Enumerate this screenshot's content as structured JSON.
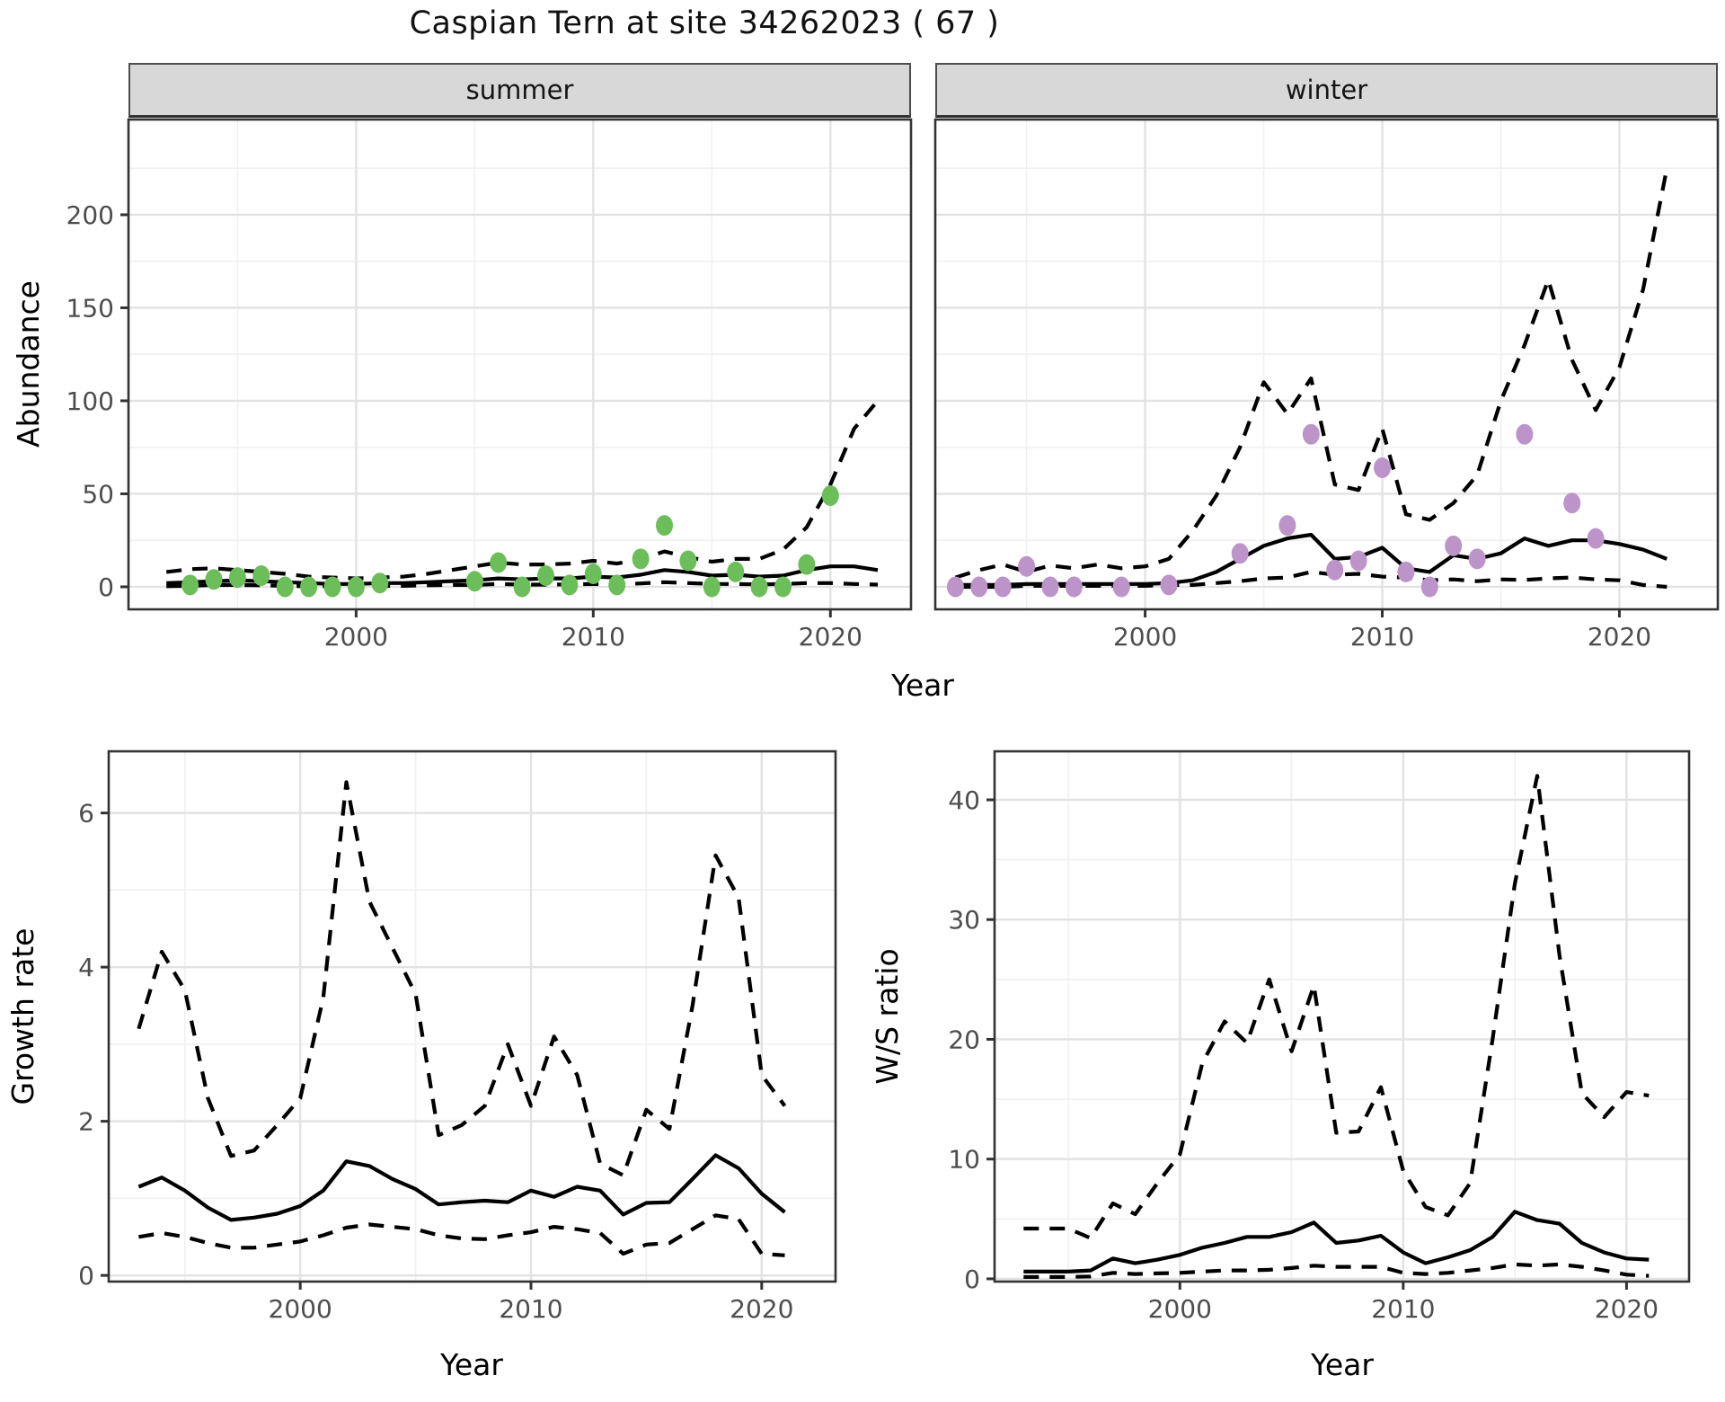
{
  "page": {
    "title": "Caspian Tern at site 34262023 ( 67 )"
  },
  "facets": {
    "summer": "summer",
    "winter": "winter"
  },
  "axis_titles": {
    "abundance": "Abundance",
    "year_top": "Year",
    "growth": "Growth rate",
    "year_growth": "Year",
    "ws": "W/S ratio",
    "year_ws": "Year"
  },
  "colors": {
    "summer_point": "#6cbe5a",
    "winter_point": "#bd94ca",
    "line": "#000000",
    "grid_major": "#e2e2e2",
    "grid_minor": "#f0f0f0",
    "panel_border": "#333333",
    "tick_label": "#4d4d4d",
    "strip_bg": "#d8d8d8"
  },
  "chart_data": [
    {
      "id": "summer",
      "type": "line",
      "facet": "summer",
      "ylabel": "Abundance",
      "xlabel": "Year",
      "xlim": [
        1990.4,
        2023.4
      ],
      "ylim": [
        -12.1,
        251.2
      ],
      "xticks": [
        2000,
        2010,
        2020
      ],
      "xminor": [
        1995,
        2005,
        2015
      ],
      "yticks": [
        0,
        50,
        100,
        150,
        200
      ],
      "yminor": [
        25,
        75,
        125,
        175,
        225
      ],
      "show_y_ticks": true,
      "grid": true,
      "legend": "none",
      "series": [
        {
          "name": "upper CI",
          "style": "dashed",
          "years": [
            1992,
            1993,
            1994,
            1995,
            1996,
            1997,
            1998,
            1999,
            2000,
            2001,
            2002,
            2003,
            2004,
            2005,
            2006,
            2007,
            2008,
            2009,
            2010,
            2011,
            2012,
            2013,
            2014,
            2015,
            2016,
            2017,
            2018,
            2019,
            2020,
            2021,
            2022
          ],
          "values": [
            8,
            9.5,
            10,
            9,
            8,
            7,
            5.5,
            5,
            4.5,
            5,
            5.5,
            7,
            9,
            11,
            13,
            12,
            12,
            12.5,
            14,
            12.5,
            15,
            19,
            16,
            13.5,
            15,
            15,
            20,
            32,
            55,
            85,
            100
          ]
        },
        {
          "name": "lower CI",
          "style": "dashed",
          "years": [
            1992,
            1993,
            1994,
            1995,
            1996,
            1997,
            1998,
            1999,
            2000,
            2001,
            2002,
            2003,
            2004,
            2005,
            2006,
            2007,
            2008,
            2009,
            2010,
            2011,
            2012,
            2013,
            2014,
            2015,
            2016,
            2017,
            2018,
            2019,
            2020,
            2021,
            2022
          ],
          "values": [
            0.3,
            0.5,
            1,
            1,
            0.8,
            0.5,
            0.3,
            0.3,
            0.3,
            0.5,
            0.5,
            0.8,
            1,
            1,
            1.5,
            1.2,
            1.2,
            1.3,
            1.5,
            1.3,
            1.8,
            2.5,
            2,
            1.5,
            1.5,
            1.3,
            1.5,
            2,
            2,
            1.5,
            1.2
          ]
        },
        {
          "name": "model fit",
          "style": "solid",
          "years": [
            1992,
            1993,
            1994,
            1995,
            1996,
            1997,
            1998,
            1999,
            2000,
            2001,
            2002,
            2003,
            2004,
            2005,
            2006,
            2007,
            2008,
            2009,
            2010,
            2011,
            2012,
            2013,
            2014,
            2015,
            2016,
            2017,
            2018,
            2019,
            2020,
            2021,
            2022
          ],
          "values": [
            2,
            2.5,
            3,
            3.5,
            3,
            2.5,
            2,
            1.5,
            1.5,
            2,
            2,
            2.5,
            3,
            3.5,
            4.5,
            4,
            4.5,
            4.5,
            5.5,
            5,
            6.5,
            9,
            8,
            6,
            6.5,
            5.5,
            6,
            9,
            11,
            11,
            9
          ]
        }
      ],
      "points": {
        "name": "observed abundance (summer)",
        "color_key": "summer_point",
        "years": [
          1993,
          1994,
          1995,
          1996,
          1997,
          1998,
          1999,
          2000,
          2001,
          2005,
          2006,
          2007,
          2008,
          2009,
          2010,
          2011,
          2012,
          2013,
          2014,
          2015,
          2016,
          2017,
          2018,
          2019,
          2020
        ],
        "values": [
          1,
          4,
          5,
          6,
          0,
          0,
          0,
          0,
          2,
          3,
          13,
          0,
          6,
          1,
          7,
          1,
          15,
          33,
          14,
          0,
          8,
          0,
          0,
          12,
          49
        ]
      }
    },
    {
      "id": "winter",
      "type": "line",
      "facet": "winter",
      "ylabel": "Abundance",
      "xlabel": "Year",
      "xlim": [
        1991.15,
        2024.15
      ],
      "ylim": [
        -12.1,
        251.2
      ],
      "xticks": [
        2000,
        2010,
        2020
      ],
      "xminor": [
        1995,
        2005,
        2015
      ],
      "yticks": [
        0,
        50,
        100,
        150,
        200
      ],
      "yminor": [
        25,
        75,
        125,
        175,
        225
      ],
      "show_y_ticks": false,
      "grid": true,
      "legend": "none",
      "series": [
        {
          "name": "upper CI",
          "style": "dashed",
          "years": [
            1992,
            1993,
            1994,
            1995,
            1996,
            1997,
            1998,
            1999,
            2000,
            2001,
            2002,
            2003,
            2004,
            2005,
            2006,
            2007,
            2008,
            2009,
            2010,
            2011,
            2012,
            2013,
            2014,
            2015,
            2016,
            2017,
            2018,
            2019,
            2020,
            2021,
            2022
          ],
          "values": [
            5,
            9,
            12,
            8,
            11.5,
            10,
            12,
            10,
            11,
            15,
            30,
            49,
            75,
            110,
            93,
            112,
            55,
            52,
            85,
            39,
            36,
            45,
            60,
            100,
            130,
            165,
            122,
            95,
            118,
            160,
            225
          ]
        },
        {
          "name": "lower CI",
          "style": "dashed",
          "years": [
            1992,
            1993,
            1994,
            1995,
            1996,
            1997,
            1998,
            1999,
            2000,
            2001,
            2002,
            2003,
            2004,
            2005,
            2006,
            2007,
            2008,
            2009,
            2010,
            2011,
            2012,
            2013,
            2014,
            2015,
            2016,
            2017,
            2018,
            2019,
            2020,
            2021,
            2022
          ],
          "values": [
            0,
            0,
            0,
            0.5,
            0.5,
            0.5,
            0.5,
            0.5,
            0.5,
            1,
            1,
            2,
            3,
            4.5,
            5,
            8,
            6.5,
            7,
            5.5,
            5,
            3.5,
            4,
            3,
            4,
            3.7,
            4.5,
            5,
            4,
            3.5,
            1,
            0
          ]
        },
        {
          "name": "model fit",
          "style": "solid",
          "years": [
            1992,
            1993,
            1994,
            1995,
            1996,
            1997,
            1998,
            1999,
            2000,
            2001,
            2002,
            2003,
            2004,
            2005,
            2006,
            2007,
            2008,
            2009,
            2010,
            2011,
            2012,
            2013,
            2014,
            2015,
            2016,
            2017,
            2018,
            2019,
            2020,
            2021,
            2022
          ],
          "values": [
            1,
            1,
            1,
            1.5,
            1.5,
            1.5,
            1.5,
            1.5,
            1.5,
            2,
            3.5,
            8,
            15,
            22,
            26,
            28,
            15,
            16,
            21,
            10,
            8,
            17,
            15,
            18,
            26,
            22,
            25,
            25,
            23,
            20,
            15
          ]
        }
      ],
      "points": {
        "name": "observed abundance (winter)",
        "color_key": "winter_point",
        "years": [
          1992,
          1993,
          1994,
          1995,
          1996,
          1997,
          1999,
          2001,
          2004,
          2006,
          2007,
          2008,
          2009,
          2010,
          2011,
          2012,
          2013,
          2014,
          2016,
          2018,
          2019
        ],
        "values": [
          0,
          0,
          0,
          11,
          0,
          0,
          0,
          1,
          18,
          33,
          82,
          9,
          14,
          64,
          8,
          0,
          22,
          15,
          82,
          45,
          26
        ]
      }
    },
    {
      "id": "growth",
      "type": "line",
      "facet": null,
      "ylabel": "Growth rate",
      "xlabel": "Year",
      "xlim": [
        1991.7,
        2023.2
      ],
      "ylim": [
        -0.08,
        6.8
      ],
      "xticks": [
        2000,
        2010,
        2020
      ],
      "xminor": [
        1995,
        2005,
        2015
      ],
      "yticks": [
        0,
        2,
        4,
        6
      ],
      "yminor": [
        1,
        3,
        5
      ],
      "show_y_ticks": true,
      "grid": true,
      "legend": "none",
      "series": [
        {
          "name": "upper CI",
          "style": "dashed",
          "years": [
            1993,
            1994,
            1995,
            1996,
            1997,
            1998,
            1999,
            2000,
            2001,
            2002,
            2003,
            2004,
            2005,
            2006,
            2007,
            2008,
            2009,
            2010,
            2011,
            2012,
            2013,
            2014,
            2015,
            2016,
            2017,
            2018,
            2019,
            2020,
            2021
          ],
          "values": [
            3.2,
            4.2,
            3.7,
            2.3,
            1.55,
            1.62,
            1.95,
            2.3,
            3.6,
            6.4,
            4.85,
            4.25,
            3.65,
            1.82,
            1.95,
            2.2,
            3.0,
            2.2,
            3.1,
            2.6,
            1.45,
            1.3,
            2.15,
            1.9,
            3.5,
            5.45,
            4.9,
            2.6,
            2.2
          ]
        },
        {
          "name": "lower CI",
          "style": "dashed",
          "years": [
            1993,
            1994,
            1995,
            1996,
            1997,
            1998,
            1999,
            2000,
            2001,
            2002,
            2003,
            2004,
            2005,
            2006,
            2007,
            2008,
            2009,
            2010,
            2011,
            2012,
            2013,
            2014,
            2015,
            2016,
            2017,
            2018,
            2019,
            2020,
            2021
          ],
          "values": [
            0.5,
            0.55,
            0.5,
            0.42,
            0.36,
            0.36,
            0.4,
            0.44,
            0.52,
            0.62,
            0.66,
            0.63,
            0.6,
            0.52,
            0.48,
            0.47,
            0.52,
            0.56,
            0.63,
            0.6,
            0.55,
            0.28,
            0.4,
            0.42,
            0.6,
            0.78,
            0.73,
            0.28,
            0.26
          ]
        },
        {
          "name": "median growth rate",
          "style": "solid",
          "years": [
            1993,
            1994,
            1995,
            1996,
            1997,
            1998,
            1999,
            2000,
            2001,
            2002,
            2003,
            2004,
            2005,
            2006,
            2007,
            2008,
            2009,
            2010,
            2011,
            2012,
            2013,
            2014,
            2015,
            2016,
            2017,
            2018,
            2019,
            2020,
            2021
          ],
          "values": [
            1.15,
            1.27,
            1.1,
            0.88,
            0.72,
            0.75,
            0.8,
            0.9,
            1.1,
            1.48,
            1.42,
            1.25,
            1.12,
            0.92,
            0.95,
            0.97,
            0.95,
            1.1,
            1.02,
            1.15,
            1.1,
            0.79,
            0.94,
            0.95,
            1.25,
            1.56,
            1.39,
            1.06,
            0.82
          ]
        }
      ],
      "points": null
    },
    {
      "id": "ws",
      "type": "line",
      "facet": null,
      "ylabel": "W/S ratio",
      "xlabel": "Year",
      "xlim": [
        1991.7,
        2022.8
      ],
      "ylim": [
        -0.23,
        44.05
      ],
      "xticks": [
        2000,
        2010,
        2020
      ],
      "xminor": [
        1995,
        2005,
        2015
      ],
      "yticks": [
        0,
        10,
        20,
        30,
        40
      ],
      "yminor": [
        5,
        15,
        25,
        35
      ],
      "show_y_ticks": true,
      "grid": true,
      "legend": "none",
      "series": [
        {
          "name": "upper CI",
          "style": "dashed",
          "years": [
            1993,
            1994,
            1995,
            1996,
            1997,
            1998,
            1999,
            2000,
            2001,
            2002,
            2003,
            2004,
            2005,
            2006,
            2007,
            2008,
            2009,
            2010,
            2011,
            2012,
            2013,
            2014,
            2015,
            2016,
            2017,
            2018,
            2019,
            2020,
            2021
          ],
          "values": [
            4.2,
            4.2,
            4.2,
            3.4,
            6.3,
            5.4,
            8,
            10.4,
            18,
            21.5,
            19.7,
            25,
            19,
            24.5,
            12.2,
            12.3,
            16,
            9,
            6,
            5.3,
            8,
            20,
            33,
            42,
            27,
            15.5,
            13.5,
            15.6,
            15.3
          ]
        },
        {
          "name": "lower CI",
          "style": "dashed",
          "years": [
            1993,
            1994,
            1995,
            1996,
            1997,
            1998,
            1999,
            2000,
            2001,
            2002,
            2003,
            2004,
            2005,
            2006,
            2007,
            2008,
            2009,
            2010,
            2011,
            2012,
            2013,
            2014,
            2015,
            2016,
            2017,
            2018,
            2019,
            2020,
            2021
          ],
          "values": [
            0.15,
            0.15,
            0.15,
            0.2,
            0.5,
            0.4,
            0.45,
            0.5,
            0.6,
            0.7,
            0.7,
            0.75,
            0.9,
            1.1,
            1.0,
            1.0,
            1.0,
            0.5,
            0.4,
            0.5,
            0.7,
            0.9,
            1.2,
            1.1,
            1.2,
            1.0,
            0.7,
            0.35,
            0.25
          ]
        },
        {
          "name": "median W/S ratio",
          "style": "solid",
          "years": [
            1993,
            1994,
            1995,
            1996,
            1997,
            1998,
            1999,
            2000,
            2001,
            2002,
            2003,
            2004,
            2005,
            2006,
            2007,
            2008,
            2009,
            2010,
            2011,
            2012,
            2013,
            2014,
            2015,
            2016,
            2017,
            2018,
            2019,
            2020,
            2021
          ],
          "values": [
            0.6,
            0.6,
            0.6,
            0.7,
            1.7,
            1.3,
            1.6,
            2.0,
            2.6,
            3.0,
            3.5,
            3.5,
            3.9,
            4.7,
            3.0,
            3.2,
            3.6,
            2.2,
            1.3,
            1.8,
            2.4,
            3.5,
            5.6,
            4.9,
            4.6,
            3.0,
            2.2,
            1.7,
            1.6
          ]
        }
      ],
      "points": null
    }
  ]
}
